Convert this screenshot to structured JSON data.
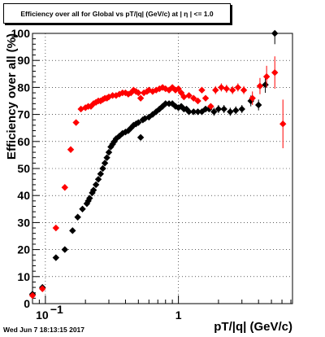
{
  "title": "Efficiency over all for Global vs pT/|q| (GeV/c) at | η | <= 1.0",
  "timestamp": "Wed Jun  7 18:13:15 2017",
  "chart_data": {
    "type": "scatter",
    "title": "Efficiency over all for Global vs pT/|q| (GeV/c) at | η | <= 1.0",
    "xlabel": "pT/|q| (GeV/c)",
    "ylabel": "Efficiency over all (%)",
    "xscale": "log",
    "xlim": [
      0.08,
      7.2
    ],
    "ylim": [
      0,
      100
    ],
    "y_ticks": [
      0,
      10,
      20,
      30,
      40,
      50,
      60,
      70,
      80,
      90,
      100
    ],
    "x_tick_labels": [
      {
        "value": 0.1,
        "label": "10",
        "exponent": "−1"
      },
      {
        "value": 1,
        "label": "1",
        "exponent": ""
      }
    ],
    "grid": true,
    "legend": "none",
    "series": [
      {
        "color": "#000000",
        "marker": "diamond",
        "points": [
          [
            0.08,
            3.5,
            0.1
          ],
          [
            0.095,
            6,
            0.3
          ],
          [
            0.12,
            17,
            1
          ],
          [
            0.14,
            20,
            0.8
          ],
          [
            0.16,
            27,
            0.8
          ],
          [
            0.175,
            32,
            0.8
          ],
          [
            0.19,
            35,
            0.8
          ],
          [
            0.205,
            37,
            0.8
          ],
          [
            0.21,
            38,
            0.8
          ],
          [
            0.215,
            39,
            0.8
          ],
          [
            0.225,
            41,
            0.8
          ],
          [
            0.23,
            42,
            0.8
          ],
          [
            0.24,
            44,
            0.8
          ],
          [
            0.25,
            46,
            0.8
          ],
          [
            0.26,
            48,
            0.8
          ],
          [
            0.27,
            50,
            0.8
          ],
          [
            0.28,
            52,
            0.8
          ],
          [
            0.29,
            54,
            0.8
          ],
          [
            0.3,
            56,
            0.8
          ],
          [
            0.31,
            58,
            0.8
          ],
          [
            0.32,
            59,
            0.8
          ],
          [
            0.33,
            60,
            0.8
          ],
          [
            0.34,
            61,
            0.8
          ],
          [
            0.36,
            62,
            0.8
          ],
          [
            0.38,
            63,
            0.8
          ],
          [
            0.4,
            63.5,
            0.8
          ],
          [
            0.42,
            64,
            0.8
          ],
          [
            0.44,
            65,
            0.8
          ],
          [
            0.46,
            66,
            0.8
          ],
          [
            0.48,
            66.5,
            0.8
          ],
          [
            0.5,
            67,
            0.8
          ],
          [
            0.52,
            61.5,
            0.8
          ],
          [
            0.54,
            68,
            0.8
          ],
          [
            0.56,
            68.5,
            0.8
          ],
          [
            0.6,
            69,
            0.8
          ],
          [
            0.64,
            70,
            0.8
          ],
          [
            0.68,
            71,
            0.8
          ],
          [
            0.72,
            72,
            0.8
          ],
          [
            0.76,
            73,
            0.8
          ],
          [
            0.8,
            74,
            0.8
          ],
          [
            0.85,
            74,
            0.8
          ],
          [
            0.9,
            74,
            0.8
          ],
          [
            0.95,
            73,
            0.8
          ],
          [
            1.0,
            72.5,
            0.8
          ],
          [
            1.05,
            73,
            0.8
          ],
          [
            1.1,
            72,
            0.8
          ],
          [
            1.15,
            72,
            0.8
          ],
          [
            1.2,
            71,
            0.8
          ],
          [
            1.3,
            71,
            0.8
          ],
          [
            1.4,
            71,
            0.8
          ],
          [
            1.5,
            71,
            0.8
          ],
          [
            1.6,
            72,
            0.8
          ],
          [
            1.7,
            72,
            0.8
          ],
          [
            1.85,
            71,
            1.5
          ],
          [
            2.0,
            72,
            1.5
          ],
          [
            2.2,
            72,
            1.5
          ],
          [
            2.45,
            71,
            1.5
          ],
          [
            2.7,
            71.5,
            1.5
          ],
          [
            3.0,
            72,
            1.5
          ],
          [
            3.5,
            75,
            2
          ],
          [
            4.0,
            73.5,
            2
          ],
          [
            4.5,
            81,
            3
          ],
          [
            5.3,
            100,
            4
          ]
        ]
      },
      {
        "color": "#ff0000",
        "marker": "diamond",
        "points": [
          [
            0.08,
            3,
            0.1
          ],
          [
            0.095,
            5.5,
            0.3
          ],
          [
            0.12,
            28,
            1
          ],
          [
            0.14,
            43,
            0.8
          ],
          [
            0.155,
            57,
            0.8
          ],
          [
            0.17,
            67,
            0.8
          ],
          [
            0.185,
            72,
            0.8
          ],
          [
            0.2,
            72.5,
            0.8
          ],
          [
            0.21,
            73,
            0.8
          ],
          [
            0.22,
            73,
            0.8
          ],
          [
            0.23,
            74,
            0.8
          ],
          [
            0.24,
            74.5,
            0.8
          ],
          [
            0.25,
            75,
            0.8
          ],
          [
            0.26,
            75,
            0.8
          ],
          [
            0.27,
            75.5,
            0.8
          ],
          [
            0.28,
            76,
            0.8
          ],
          [
            0.29,
            76,
            0.8
          ],
          [
            0.3,
            76.5,
            0.8
          ],
          [
            0.32,
            77,
            0.8
          ],
          [
            0.34,
            77,
            0.8
          ],
          [
            0.36,
            77.5,
            0.8
          ],
          [
            0.38,
            78,
            0.8
          ],
          [
            0.4,
            78,
            0.8
          ],
          [
            0.42,
            77.5,
            0.8
          ],
          [
            0.44,
            78,
            0.8
          ],
          [
            0.46,
            79,
            0.8
          ],
          [
            0.48,
            78.5,
            0.8
          ],
          [
            0.5,
            78,
            0.8
          ],
          [
            0.52,
            76,
            0.8
          ],
          [
            0.55,
            78,
            0.8
          ],
          [
            0.58,
            78.5,
            0.8
          ],
          [
            0.6,
            79,
            0.8
          ],
          [
            0.64,
            78.5,
            0.8
          ],
          [
            0.68,
            79,
            0.8
          ],
          [
            0.72,
            79.5,
            0.8
          ],
          [
            0.76,
            80,
            0.8
          ],
          [
            0.8,
            79.5,
            0.8
          ],
          [
            0.85,
            79,
            0.8
          ],
          [
            0.9,
            80,
            0.8
          ],
          [
            0.95,
            79,
            0.8
          ],
          [
            1.0,
            79.5,
            0.8
          ],
          [
            1.05,
            78,
            0.8
          ],
          [
            1.1,
            76.5,
            0.8
          ],
          [
            1.2,
            77,
            0.8
          ],
          [
            1.3,
            76,
            0.8
          ],
          [
            1.4,
            75,
            0.8
          ],
          [
            1.5,
            79,
            0.8
          ],
          [
            1.6,
            76,
            0.8
          ],
          [
            1.75,
            73,
            0.8
          ],
          [
            1.9,
            79,
            1.5
          ],
          [
            2.1,
            80,
            1.5
          ],
          [
            2.3,
            79.5,
            1.5
          ],
          [
            2.55,
            79,
            1.5
          ],
          [
            2.8,
            80,
            1.5
          ],
          [
            3.1,
            79,
            1.5
          ],
          [
            3.6,
            76,
            2.5
          ],
          [
            4.1,
            80.5,
            3
          ],
          [
            4.6,
            84,
            4
          ],
          [
            5.3,
            85.5,
            6
          ],
          [
            6.1,
            66.5,
            9
          ]
        ]
      }
    ]
  }
}
